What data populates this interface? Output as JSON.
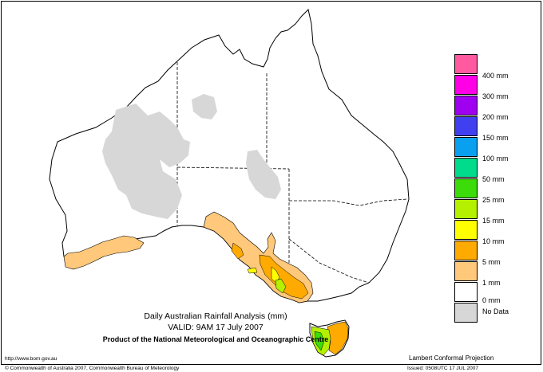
{
  "map": {
    "title": "Daily Australian Rainfall Analysis (mm)",
    "valid": "VALID: 9AM 17 July 2007",
    "product": "Product of the National Meteorological and Oceanographic Centre",
    "website": "http://www.bom.gov.au",
    "copyright": "© Commonwealth of Australia 2007, Commonwealth Bureau of Meteorology",
    "projection": "Lambert Conformal Projection",
    "issued": "Issued: 0508UTC 17 JUL 2007"
  },
  "legend": {
    "items": [
      {
        "label": "400 mm",
        "color": "#ff5aa0"
      },
      {
        "label": "300 mm",
        "color": "#ff00e6"
      },
      {
        "label": "200 mm",
        "color": "#a000f0"
      },
      {
        "label": "150 mm",
        "color": "#4040f0"
      },
      {
        "label": "100 mm",
        "color": "#0aa0f0"
      },
      {
        "label": "50 mm",
        "color": "#00dc8c"
      },
      {
        "label": "25 mm",
        "color": "#3cdc0a"
      },
      {
        "label": "15 mm",
        "color": "#b4f000"
      },
      {
        "label": "10 mm",
        "color": "#ffff00"
      },
      {
        "label": "5 mm",
        "color": "#ffaa00"
      },
      {
        "label": "1 mm",
        "color": "#ffc87a"
      },
      {
        "label": "0 mm",
        "color": "#ffffff"
      },
      {
        "label": "No Data",
        "color": "#d7d7d7"
      }
    ]
  },
  "colors": {
    "outline": "#000000",
    "no_data": "#d7d7d7",
    "rain_1mm": "#ffc87a",
    "rain_5mm": "#ffaa00",
    "rain_10mm": "#ffff00",
    "rain_15mm": "#b4f000",
    "rain_25mm": "#3cdc0a"
  }
}
